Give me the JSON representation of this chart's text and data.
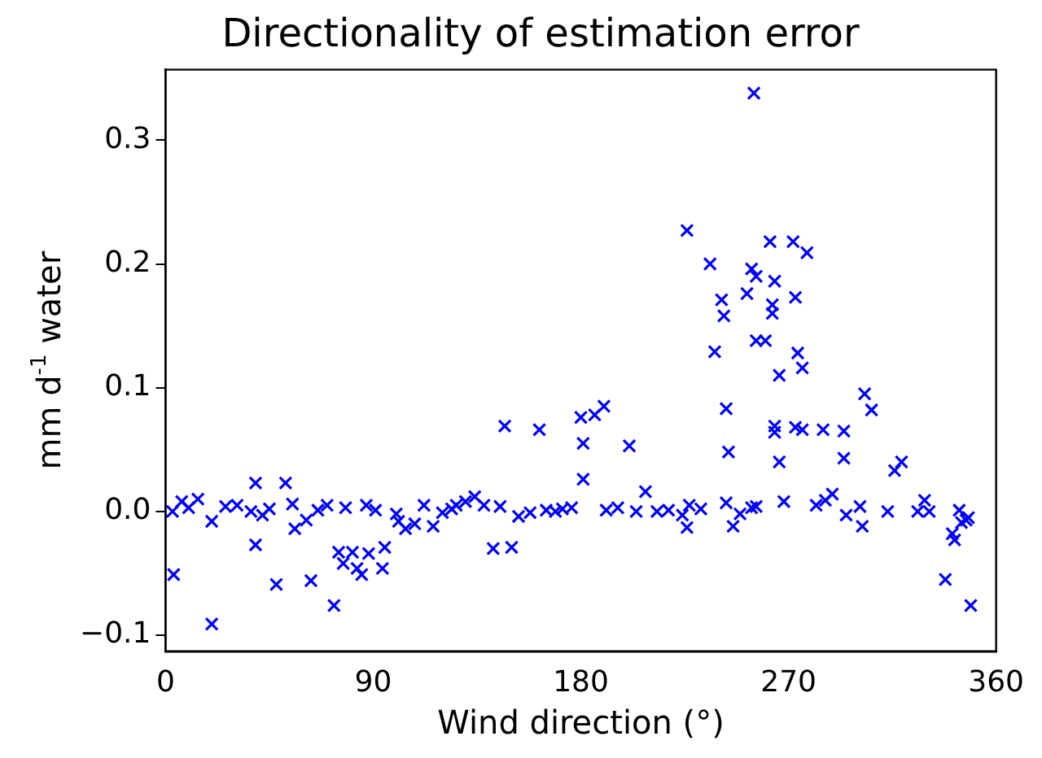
{
  "chart_data": {
    "type": "scatter",
    "title": "Directionality of estimation error",
    "xlabel": "Wind direction (°)",
    "ylabel": "mm d$^{-1}$ water",
    "xlim": [
      0,
      360
    ],
    "xticks": [
      0,
      90,
      180,
      270,
      360
    ],
    "ylim": [
      -0.113,
      0.357
    ],
    "yticks": [
      {
        "value": -0.1,
        "label": "−0.1"
      },
      {
        "value": 0,
        "label": "0.0"
      },
      {
        "value": 0.1,
        "label": "0.1"
      },
      {
        "value": 0.2,
        "label": "0.2"
      },
      {
        "value": 0.3,
        "label": "0.3"
      }
    ],
    "grid": false,
    "marker": "cross",
    "series": [
      {
        "color": "#0000ff",
        "x": [
          3.5,
          3,
          7,
          14,
          20,
          20,
          26,
          31,
          37,
          39,
          39,
          42,
          48,
          52,
          55,
          56,
          61,
          63,
          70,
          73,
          75,
          77,
          81,
          83,
          85,
          87,
          88,
          91,
          94,
          95,
          101,
          104,
          108,
          112,
          116,
          120,
          126,
          130,
          134,
          138,
          142,
          147,
          150,
          158,
          162,
          169,
          176,
          180,
          181,
          181,
          186,
          190,
          191,
          201,
          208,
          213,
          224,
          226,
          227,
          226,
          236,
          238,
          241,
          242,
          243,
          243,
          244,
          246,
          252,
          254,
          254,
          256,
          255,
          256,
          256,
          260,
          262,
          263,
          263,
          264,
          264,
          264,
          266,
          266,
          268,
          272,
          273,
          273,
          274,
          276,
          278,
          276,
          285,
          286,
          289,
          294,
          294,
          295,
          301,
          302,
          303,
          306,
          313,
          316,
          319,
          326,
          329,
          331,
          338,
          341,
          342,
          344,
          345,
          347,
          349,
          348,
          10,
          45,
          66,
          78,
          100,
          124,
          145,
          153,
          165,
          172,
          196,
          204,
          218,
          232,
          249,
          282
        ],
        "values": [
          -0.051,
          0,
          0.008,
          0.01,
          -0.008,
          -0.091,
          0.004,
          0.005,
          0,
          0.023,
          -0.027,
          -0.003,
          -0.059,
          0.023,
          0.006,
          -0.014,
          -0.007,
          -0.056,
          0.005,
          -0.076,
          -0.033,
          -0.042,
          -0.033,
          -0.046,
          -0.051,
          0.005,
          -0.034,
          0.001,
          -0.046,
          -0.029,
          -0.008,
          -0.014,
          -0.01,
          0.005,
          -0.012,
          -0.001,
          0.005,
          0.008,
          0.012,
          0.005,
          -0.03,
          0.069,
          -0.029,
          -0.001,
          0.066,
          0,
          0.003,
          0.076,
          0.055,
          0.026,
          0.078,
          0.085,
          0.001,
          0.053,
          0.016,
          0,
          -0.003,
          -0.013,
          0.005,
          0.227,
          0.2,
          0.129,
          0.171,
          0.158,
          0.007,
          0.083,
          0.048,
          -0.012,
          0.176,
          0.003,
          0.196,
          0.138,
          0.338,
          0.19,
          0.004,
          0.138,
          0.218,
          0.167,
          0.16,
          0.186,
          0.069,
          0.064,
          0.11,
          0.04,
          0.008,
          0.218,
          0.173,
          0.068,
          0.128,
          0.116,
          0.209,
          0.066,
          0.066,
          0.009,
          0.014,
          0.065,
          0.043,
          -0.003,
          0.004,
          -0.012,
          0.095,
          0.082,
          0,
          0.033,
          0.04,
          0,
          0.009,
          0,
          -0.055,
          -0.018,
          -0.023,
          0.001,
          -0.009,
          -0.007,
          -0.076,
          -0.005,
          0.003,
          0.002,
          0.001,
          0.003,
          -0.002,
          0.002,
          0.004,
          -0.004,
          0.001,
          0.002,
          0.003,
          0,
          0.001,
          0.002,
          -0.002,
          0.005
        ]
      }
    ]
  }
}
